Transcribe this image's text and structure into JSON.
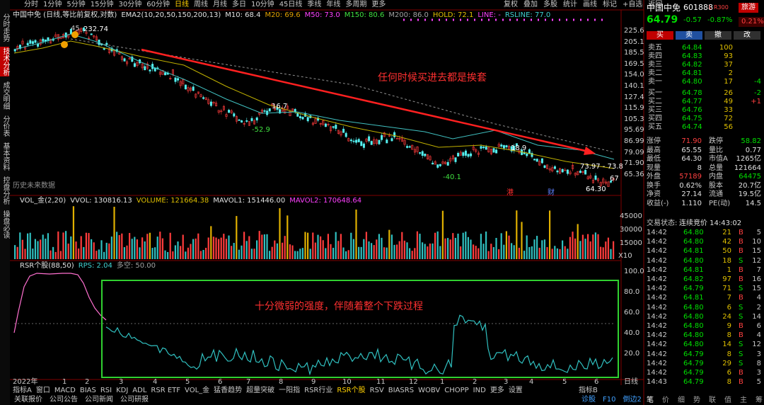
{
  "side_tabs": [
    "分时走势",
    "技术分析",
    "成交明细",
    "分价表",
    "基本资料",
    "控盘分析",
    "操盘必读"
  ],
  "toolbar": {
    "periods": [
      "分时",
      "1分钟",
      "5分钟",
      "15分钟",
      "30分钟",
      "60分钟",
      "日线",
      "周线",
      "月线",
      "多日",
      "10分钟",
      "45日线",
      "季线",
      "年线",
      "多周期",
      "更多"
    ],
    "tools": [
      "复权",
      "叠加",
      "多股",
      "统计",
      "画线",
      "标记",
      "+自选",
      "返回"
    ]
  },
  "chart": {
    "legend": [
      {
        "text": "中国中免 (日线,等比前复权,对数)",
        "color": "#e0e0e0"
      },
      {
        "text": "EMA2(10,20,50,150,200,13)",
        "color": "#e0e0e0"
      },
      {
        "text": "M10: 68.4",
        "color": "#e0e0e0"
      },
      {
        "text": "M20: 69.6",
        "color": "#e0a000"
      },
      {
        "text": "M50: 73.0",
        "color": "#ff40ff"
      },
      {
        "text": "M150: 80.6",
        "color": "#40e040"
      },
      {
        "text": "M200: 86.0",
        "color": "#a0a0a0"
      },
      {
        "text": "HOLD: 72.1",
        "color": "#e0c000"
      },
      {
        "text": "LINE: -",
        "color": "#ff40ff"
      },
      {
        "text": "RSLINE: 77.0",
        "color": "#40d0d0"
      }
    ],
    "price_axis": [
      "225.6",
      "205.1",
      "185.5",
      "169.5",
      "154.0",
      "140.1",
      "127.4",
      "115.9",
      "105.3",
      "95.69",
      "86.99",
      "79.09",
      "71.90",
      "65.36"
    ],
    "annotations": [
      "45",
      "232.74",
      "16.7",
      "-52.9",
      "18.9",
      "-40.1",
      "73.97 - 73.8",
      "64.30",
      "67",
      "历史未来数据",
      "港",
      "财",
      "任何时候买进去都是挨套"
    ]
  },
  "volume": {
    "legend": [
      {
        "text": "VOL_金(2,20)",
        "color": "#e0e0e0"
      },
      {
        "text": "VVOL: 130816.13",
        "color": "#e0e0e0"
      },
      {
        "text": "VOLUME: 121664.38",
        "color": "#e0c000"
      },
      {
        "text": "MAVOL1: 151446.00",
        "color": "#e0e0e0"
      },
      {
        "text": "MAVOL2: 170648.64",
        "color": "#ff40ff"
      }
    ],
    "axis": [
      "45000",
      "30000",
      "15000"
    ],
    "unit": "X10"
  },
  "rsr": {
    "legend": [
      {
        "text": "RSR个股(88,50)",
        "color": "#e0e0e0"
      },
      {
        "text": "RPS: 2.04",
        "color": "#40d0d0"
      },
      {
        "text": "多空: 50.00",
        "color": "#a0a0a0"
      }
    ],
    "axis": [
      "100.0",
      "80.0",
      "60.0",
      "40.0",
      "20.0"
    ],
    "note": "十分微弱的强度，伴随着整个下跌过程"
  },
  "x_axis": {
    "labels": [
      "2022年",
      "1",
      "2",
      "3",
      "4",
      "5",
      "6",
      "7",
      "8",
      "9",
      "10",
      "11",
      "12",
      "1",
      "2",
      "3",
      "4",
      "5",
      "6"
    ],
    "period": "日线"
  },
  "indicator_tabs": [
    "指标A",
    "窗口",
    "MACD",
    "BIAS",
    "RSI",
    "KDJ",
    "ADL",
    "RSR ETF",
    "VOL_金",
    "猛香趋势",
    "超量突破",
    "一阳指",
    "RSR行业",
    "RSR个股",
    "RSV",
    "BIASRS",
    "WOBV",
    "CHOPP",
    "IND",
    "更多",
    "设置"
  ],
  "indicator_b": "指标B",
  "status_bar": {
    "links": [
      "关联报价",
      "公司公告",
      "公司新闻",
      "公司研报"
    ],
    "right": [
      "诊股",
      "F10",
      "倒边2"
    ]
  },
  "quote": {
    "name": "中国中免",
    "code": "601888",
    "tag": "L R300",
    "sector": "旅游",
    "sector_change": "0.21%",
    "price": "64.79",
    "change": "-0.57",
    "change_pct": "-0.87%",
    "buttons": [
      "买",
      "卖",
      "撤",
      "改"
    ],
    "asks": [
      {
        "label": "卖五",
        "price": "64.84",
        "volume": "100"
      },
      {
        "label": "卖四",
        "price": "64.83",
        "volume": "93"
      },
      {
        "label": "卖三",
        "price": "64.82",
        "volume": "37"
      },
      {
        "label": "卖二",
        "price": "64.81",
        "volume": "2"
      },
      {
        "label": "卖一",
        "price": "64.80",
        "volume": "17",
        "change": "-4"
      }
    ],
    "bids": [
      {
        "label": "买一",
        "price": "64.78",
        "volume": "26",
        "change": "-2"
      },
      {
        "label": "买二",
        "price": "64.77",
        "volume": "49",
        "change": "+1"
      },
      {
        "label": "买三",
        "price": "64.76",
        "volume": "33"
      },
      {
        "label": "买四",
        "price": "64.75",
        "volume": "72"
      },
      {
        "label": "买五",
        "price": "64.74",
        "volume": "56"
      }
    ],
    "stats": [
      [
        "涨停",
        "71.90",
        "跌停",
        "58.82"
      ],
      [
        "最高",
        "65.55",
        "量比",
        "0.77"
      ],
      [
        "最低",
        "64.30",
        "市值A",
        "1265亿"
      ],
      [
        "现量",
        "8",
        "总量",
        "121664"
      ],
      [
        "外盘",
        "57189",
        "内盘",
        "64475"
      ],
      [
        "换手",
        "0.62%",
        "股本",
        "20.7亿"
      ],
      [
        "净资",
        "27.14",
        "流通",
        "19.5亿"
      ],
      [
        "收益(-)",
        "1.110",
        "PE(动)",
        "14.5"
      ]
    ],
    "status_label": "交易状态:",
    "status": "连续竞价 14:43:02",
    "ticks": [
      [
        "14:42",
        "64.80",
        "21",
        "B",
        "5"
      ],
      [
        "14:42",
        "64.80",
        "42",
        "B",
        "10"
      ],
      [
        "14:42",
        "64.81",
        "50",
        "B",
        "15"
      ],
      [
        "14:42",
        "64.80",
        "18",
        "S",
        "12"
      ],
      [
        "14:42",
        "64.81",
        "1",
        "B",
        "7"
      ],
      [
        "14:42",
        "64.82",
        "97",
        "B",
        "16"
      ],
      [
        "14:42",
        "64.79",
        "71",
        "S",
        "15"
      ],
      [
        "14:42",
        "64.81",
        "7",
        "B",
        "4"
      ],
      [
        "14:42",
        "64.80",
        "6",
        "S",
        "2"
      ],
      [
        "14:42",
        "64.80",
        "24",
        "S",
        "14"
      ],
      [
        "14:42",
        "64.80",
        "9",
        "B",
        "6"
      ],
      [
        "14:42",
        "64.80",
        "8",
        "B",
        "4"
      ],
      [
        "14:42",
        "64.80",
        "14",
        "S",
        "12"
      ],
      [
        "14:42",
        "64.79",
        "8",
        "S",
        "3"
      ],
      [
        "14:42",
        "64.79",
        "29",
        "S",
        "8"
      ],
      [
        "14:42",
        "64.79",
        "6",
        "B",
        "3"
      ],
      [
        "14:43",
        "64.79",
        "8",
        "B",
        "5"
      ]
    ],
    "tabs": [
      "笔",
      "价",
      "细",
      "势",
      "联",
      "值",
      "主",
      "筹"
    ]
  }
}
